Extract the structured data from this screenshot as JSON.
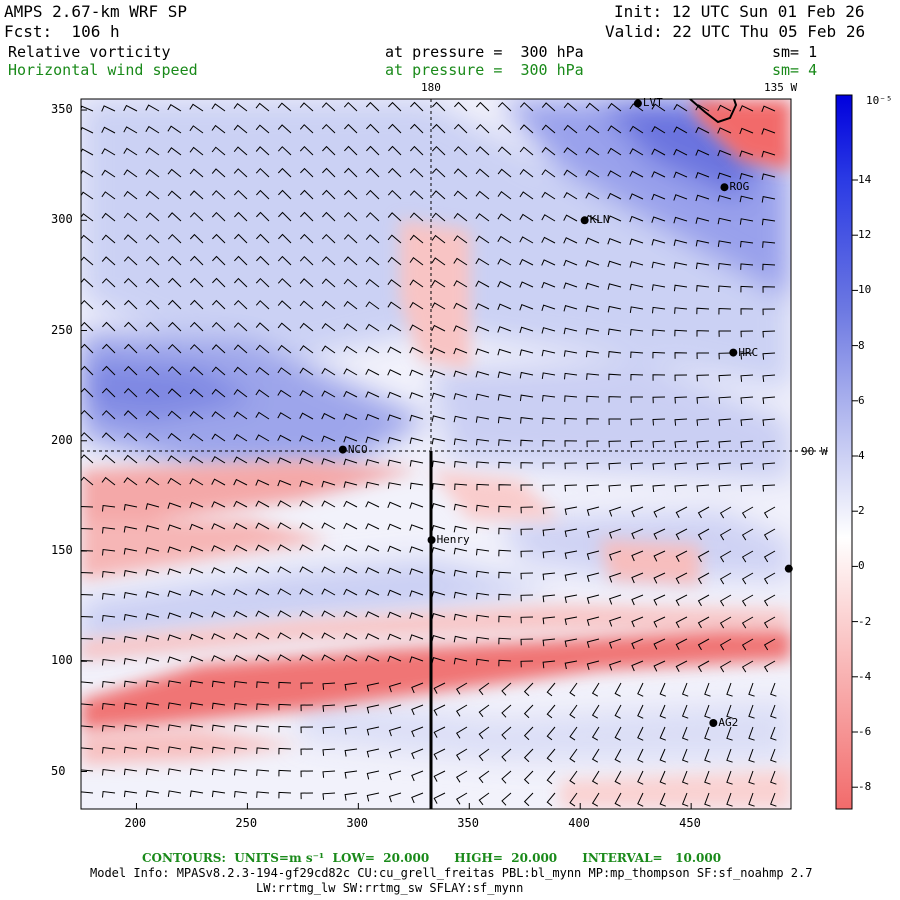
{
  "header": {
    "model": "AMPS 2.67-km WRF SP",
    "forecast": "Fcst:  106 h",
    "init": "Init: 12 UTC Sun 01 Feb 26",
    "valid": "Valid: 22 UTC Thu 05 Feb 26",
    "field1_name": "Relative vorticity",
    "field1_level": "at pressure =  300 hPa",
    "field1_smooth": "sm= 1",
    "field2_name": "Horizontal wind speed",
    "field2_level": "at pressure =  300 hPa",
    "field2_smooth": "sm= 4"
  },
  "map": {
    "lon_label_top": "180",
    "lon_label_right_top": "135 W",
    "lon_label_right": "90 W",
    "x_ticks": [
      "200",
      "250",
      "300",
      "350",
      "400",
      "450"
    ],
    "y_ticks": [
      "350",
      "300",
      "250",
      "200",
      "150",
      "100",
      "50"
    ],
    "x_range": [
      175,
      495
    ],
    "y_range": [
      33,
      355
    ],
    "stations": [
      {
        "name": "LVT",
        "x": 426,
        "y": 353
      },
      {
        "name": "ROG",
        "x": 465,
        "y": 315
      },
      {
        "name": "KLN",
        "x": 402,
        "y": 300
      },
      {
        "name": "HRC",
        "x": 469,
        "y": 240
      },
      {
        "name": "NCO",
        "x": 293,
        "y": 196
      },
      {
        "name": "Henry",
        "x": 333,
        "y": 155
      },
      {
        "name": "",
        "x": 494,
        "y": 142
      },
      {
        "name": "AG2",
        "x": 460,
        "y": 72
      }
    ]
  },
  "colorbar": {
    "units": "10⁻⁵ s⁻¹",
    "labels": [
      "14",
      "12",
      "10",
      "8",
      "6",
      "4",
      "2",
      "0",
      "-2",
      "-4",
      "-6",
      "-8"
    ],
    "colors": {
      "positive": "#0000dd",
      "negative": "#ff6666",
      "neutral": "#ffffff"
    }
  },
  "footer": {
    "contours": "CONTOURS:  UNITS=m s⁻¹  LOW=  20.000      HIGH=  20.000      INTERVAL=   10.000",
    "model_info": "Model Info: MPASv8.2.3-194-gf29cd82c CU:cu_grell_freitas PBL:bl_mynn MP:mp_thompson SF:sf_noahmp 2.7",
    "model_info2": "LW:rrtmg_lw SW:rrtmg_sw SFLAY:sf_mynn"
  }
}
